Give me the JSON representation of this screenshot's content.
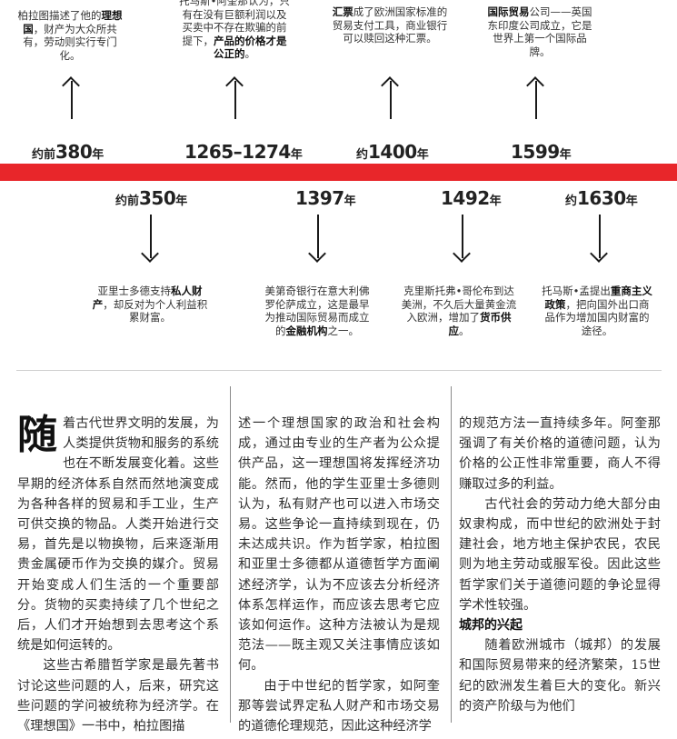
{
  "timeline": {
    "top": [
      {
        "year_prefix": "约前",
        "year": "380",
        "year_suffix": "年",
        "text_a": "柏拉图描述了他的",
        "bold": "理想国",
        "text_b": "，财产为大众所共有，劳动则实行专门化。"
      },
      {
        "year_prefix": "",
        "year": "1265–1274",
        "year_suffix": "年",
        "text_a": "托马斯•阿奎那认为，只有在没有巨额利润以及买卖中不存在欺骗的前提下，",
        "bold": "产品的价格才是公正的",
        "text_b": "。"
      },
      {
        "year_prefix": "约",
        "year": "1400",
        "year_suffix": "年",
        "text_a": "",
        "bold": "汇票",
        "text_b": "成了欧洲国家标准的贸易支付工具，商业银行可以赎回这种汇票。"
      },
      {
        "year_prefix": "",
        "year": "1599",
        "year_suffix": "年",
        "text_a": "",
        "bold": "国际贸易",
        "text_b": "公司——英国东印度公司成立，它是世界上第一个国际品牌。"
      }
    ],
    "bottom": [
      {
        "year_prefix": "约前",
        "year": "350",
        "year_suffix": "年",
        "text_a": "亚里士多德支持",
        "bold": "私人财产",
        "text_b": "，却反对为个人利益积累财富。"
      },
      {
        "year_prefix": "",
        "year": "1397",
        "year_suffix": "年",
        "text_a": "美第奇银行在意大利佛罗伦萨成立，这是最早为推动国际贸易而成立的",
        "bold": "金融机构",
        "text_b": "之一。"
      },
      {
        "year_prefix": "",
        "year": "1492",
        "year_suffix": "年",
        "text_a": "克里斯托弗•哥伦布到达美洲，不久后大量黄金流入欧洲，增加了",
        "bold": "货币供应",
        "text_b": "。"
      },
      {
        "year_prefix": "约",
        "year": "1630",
        "year_suffix": "年",
        "text_a": "托马斯•孟提出",
        "bold": "重商主义政策",
        "text_b": "，把向国外出口商品作为增加国内财富的途径。"
      }
    ]
  },
  "article": {
    "dropcap": "随",
    "col1_p1": "着古代世界文明的发展，为人类提供货物和服务的系统也在不断发展变化着。这些早期的经济体系自然而然地演变成为各种各样的贸易和手工业，生产可供交换的物品。人类开始进行交易，首先是以物换物，后来逐渐用贵金属硬币作为交换的媒介。贸易开始变成人们生活的一个重要部分。货物的买卖持续了几个世纪之后，人们才开始想到去思考这个系统是如何运转的。",
    "col1_p2": "这些古希腊哲学家是最先著书讨论这些问题的人，后来，研究这些问题的学问被统称为经济学。在《理想国》一书中，柏拉图描",
    "col2_p1": "述一个理想国家的政治和社会构成，通过由专业的生产者为公众提供产品，这一理想国将发挥经济功能。然而，他的学生亚里士多德则认为，私有财产也可以进入市场交易。这些争论一直持续到现在，仍未达成共识。作为哲学家，柏拉图和亚里士多德都从道德哲学方面阐述经济学，认为不应该去分析经济体系怎样运作，而应该去思考它应该如何运作。这种方法被认为是规范法——既主观又关注事情应该如何。",
    "col2_p2": "由于中世纪的哲学家，如阿奎那等尝试界定私人财产和市场交易的道德伦理规范，因此这种经济学",
    "col3_p1": "的规范方法一直持续多年。阿奎那强调了有关价格的道德问题，认为价格的公正性非常重要，商人不得赚取过多的利益。",
    "col3_p2": "古代社会的劳动力绝大部分由奴隶构成，而中世纪的欧洲处于封建社会，地方地主保护农民，农民则为地主劳动或服军役。因此这些哲学家们关于道德问题的争论显得学术性较强。",
    "subhead": "城邦的兴起",
    "col3_p3": "随着欧洲城市（城邦）的发展和国际贸易带来的经济繁荣，15世纪的欧洲发生着巨大的变化。新兴的资产阶级与为他们"
  }
}
